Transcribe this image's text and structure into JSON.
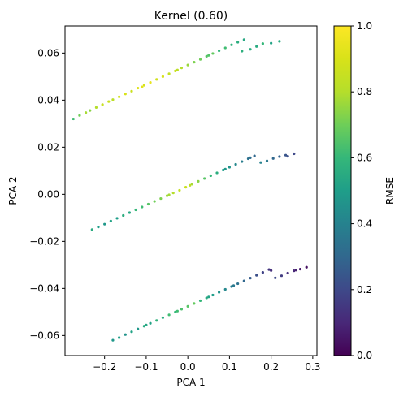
{
  "chart_data": {
    "type": "scatter",
    "title": "Kernel (0.60)",
    "xlabel": "PCA 1",
    "ylabel": "PCA 2",
    "xlim": [
      -0.295,
      0.31
    ],
    "ylim": [
      -0.0685,
      0.0715
    ],
    "x_ticks": [
      -0.2,
      -0.1,
      0.0,
      0.1,
      0.2,
      0.3
    ],
    "x_tick_labels": [
      "−0.2",
      "−0.1",
      "0.0",
      "0.1",
      "0.2",
      "0.3"
    ],
    "y_ticks": [
      -0.06,
      -0.04,
      -0.02,
      0.0,
      0.02,
      0.04,
      0.06
    ],
    "y_tick_labels": [
      "−0.06",
      "−0.04",
      "−0.02",
      "0.00",
      "0.02",
      "0.04",
      "0.06"
    ],
    "grid": false,
    "colorbar": {
      "label": "RMSE",
      "colormap": "viridis",
      "range": [
        0.0,
        1.0
      ],
      "ticks": [
        0.0,
        0.2,
        0.4,
        0.6,
        0.8,
        1.0
      ],
      "tick_labels": [
        "0.0",
        "0.2",
        "0.4",
        "0.6",
        "0.8",
        "1.0"
      ]
    },
    "series": [
      {
        "points": [
          [
            -0.275,
            0.032,
            0.62
          ],
          [
            -0.26,
            0.0335,
            0.7
          ],
          [
            -0.245,
            0.0347,
            0.78
          ],
          [
            -0.235,
            0.0356,
            0.74
          ],
          [
            -0.22,
            0.0369,
            0.8
          ],
          [
            -0.205,
            0.0381,
            0.85
          ],
          [
            -0.19,
            0.0394,
            0.86
          ],
          [
            -0.18,
            0.0402,
            0.82
          ],
          [
            -0.165,
            0.0414,
            0.88
          ],
          [
            -0.15,
            0.0426,
            0.9
          ],
          [
            -0.135,
            0.0438,
            0.86
          ],
          [
            -0.12,
            0.0451,
            0.92
          ],
          [
            -0.105,
            0.0463,
            0.9
          ],
          [
            -0.09,
            0.0475,
            0.94
          ],
          [
            -0.075,
            0.0488,
            0.88
          ],
          [
            -0.06,
            0.05,
            0.9
          ],
          [
            -0.045,
            0.0512,
            0.84
          ],
          [
            -0.03,
            0.0524,
            0.86
          ],
          [
            -0.015,
            0.0537,
            0.8
          ],
          [
            0.0,
            0.0549,
            0.76
          ],
          [
            0.015,
            0.0561,
            0.72
          ],
          [
            0.03,
            0.0573,
            0.7
          ],
          [
            0.045,
            0.0586,
            0.66
          ],
          [
            0.06,
            0.0598,
            0.68
          ],
          [
            0.075,
            0.061,
            0.6
          ],
          [
            0.09,
            0.0622,
            0.62
          ],
          [
            0.105,
            0.0635,
            0.58
          ],
          [
            0.12,
            0.0646,
            0.56
          ],
          [
            0.135,
            0.0657,
            0.54
          ],
          [
            0.15,
            0.0616,
            0.56
          ],
          [
            0.165,
            0.0628,
            0.55
          ],
          [
            0.18,
            0.064,
            0.6
          ],
          [
            0.2,
            0.0642,
            0.52
          ],
          [
            0.22,
            0.065,
            0.55
          ],
          [
            -0.11,
            0.0456,
            0.93
          ],
          [
            -0.025,
            0.0528,
            0.82
          ],
          [
            0.05,
            0.059,
            0.65
          ],
          [
            0.13,
            0.0608,
            0.57
          ]
        ]
      },
      {
        "points": [
          [
            -0.23,
            -0.015,
            0.55
          ],
          [
            -0.215,
            -0.0139,
            0.5
          ],
          [
            -0.2,
            -0.0127,
            0.48
          ],
          [
            -0.185,
            -0.0114,
            0.52
          ],
          [
            -0.17,
            -0.0102,
            0.5
          ],
          [
            -0.155,
            -0.009,
            0.56
          ],
          [
            -0.14,
            -0.0078,
            0.54
          ],
          [
            -0.125,
            -0.0066,
            0.6
          ],
          [
            -0.11,
            -0.0054,
            0.62
          ],
          [
            -0.095,
            -0.0042,
            0.66
          ],
          [
            -0.08,
            -0.003,
            0.7
          ],
          [
            -0.065,
            -0.0018,
            0.72
          ],
          [
            -0.05,
            -0.0006,
            0.76
          ],
          [
            -0.035,
            0.0006,
            0.8
          ],
          [
            -0.02,
            0.0017,
            0.84
          ],
          [
            -0.005,
            0.003,
            0.86
          ],
          [
            0.01,
            0.0043,
            0.78
          ],
          [
            0.025,
            0.0055,
            0.74
          ],
          [
            0.04,
            0.0067,
            0.66
          ],
          [
            0.055,
            0.0079,
            0.6
          ],
          [
            0.07,
            0.0091,
            0.56
          ],
          [
            0.085,
            0.0103,
            0.5
          ],
          [
            0.1,
            0.0115,
            0.46
          ],
          [
            0.115,
            0.0127,
            0.42
          ],
          [
            0.13,
            0.0139,
            0.38
          ],
          [
            0.145,
            0.0151,
            0.34
          ],
          [
            0.16,
            0.0163,
            0.3
          ],
          [
            0.175,
            0.0135,
            0.4
          ],
          [
            0.19,
            0.0142,
            0.36
          ],
          [
            0.205,
            0.0152,
            0.3
          ],
          [
            0.22,
            0.016,
            0.28
          ],
          [
            0.235,
            0.0166,
            0.24
          ],
          [
            0.255,
            0.0172,
            0.2
          ],
          [
            0.24,
            0.0161,
            0.22
          ],
          [
            -0.045,
            -0.0002,
            0.78
          ],
          [
            0.005,
            0.0038,
            0.82
          ],
          [
            0.09,
            0.0107,
            0.48
          ],
          [
            0.15,
            0.0155,
            0.32
          ]
        ]
      },
      {
        "points": [
          [
            -0.18,
            -0.062,
            0.48
          ],
          [
            -0.165,
            -0.0609,
            0.5
          ],
          [
            -0.15,
            -0.0596,
            0.46
          ],
          [
            -0.135,
            -0.0584,
            0.52
          ],
          [
            -0.12,
            -0.0572,
            0.48
          ],
          [
            -0.105,
            -0.056,
            0.55
          ],
          [
            -0.09,
            -0.0548,
            0.52
          ],
          [
            -0.075,
            -0.0536,
            0.58
          ],
          [
            -0.06,
            -0.0524,
            0.56
          ],
          [
            -0.045,
            -0.0512,
            0.62
          ],
          [
            -0.03,
            -0.05,
            0.6
          ],
          [
            -0.015,
            -0.0488,
            0.64
          ],
          [
            0.0,
            -0.0476,
            0.66
          ],
          [
            0.015,
            -0.0464,
            0.68
          ],
          [
            0.03,
            -0.0452,
            0.6
          ],
          [
            0.045,
            -0.044,
            0.55
          ],
          [
            0.06,
            -0.0428,
            0.5
          ],
          [
            0.075,
            -0.0416,
            0.46
          ],
          [
            0.09,
            -0.0404,
            0.42
          ],
          [
            0.105,
            -0.0392,
            0.38
          ],
          [
            0.12,
            -0.038,
            0.34
          ],
          [
            0.135,
            -0.0368,
            0.3
          ],
          [
            0.15,
            -0.0356,
            0.26
          ],
          [
            0.165,
            -0.0344,
            0.22
          ],
          [
            0.18,
            -0.0332,
            0.18
          ],
          [
            0.195,
            -0.032,
            0.14
          ],
          [
            0.21,
            -0.0355,
            0.2
          ],
          [
            0.225,
            -0.0346,
            0.16
          ],
          [
            0.24,
            -0.0335,
            0.12
          ],
          [
            0.255,
            -0.0325,
            0.1
          ],
          [
            0.27,
            -0.0318,
            0.06
          ],
          [
            0.285,
            -0.031,
            0.04
          ],
          [
            -0.1,
            -0.0555,
            0.53
          ],
          [
            -0.025,
            -0.0496,
            0.62
          ],
          [
            0.05,
            -0.0436,
            0.52
          ],
          [
            0.11,
            -0.0388,
            0.36
          ],
          [
            0.2,
            -0.0324,
            0.12
          ],
          [
            0.26,
            -0.0322,
            0.08
          ]
        ]
      }
    ]
  }
}
